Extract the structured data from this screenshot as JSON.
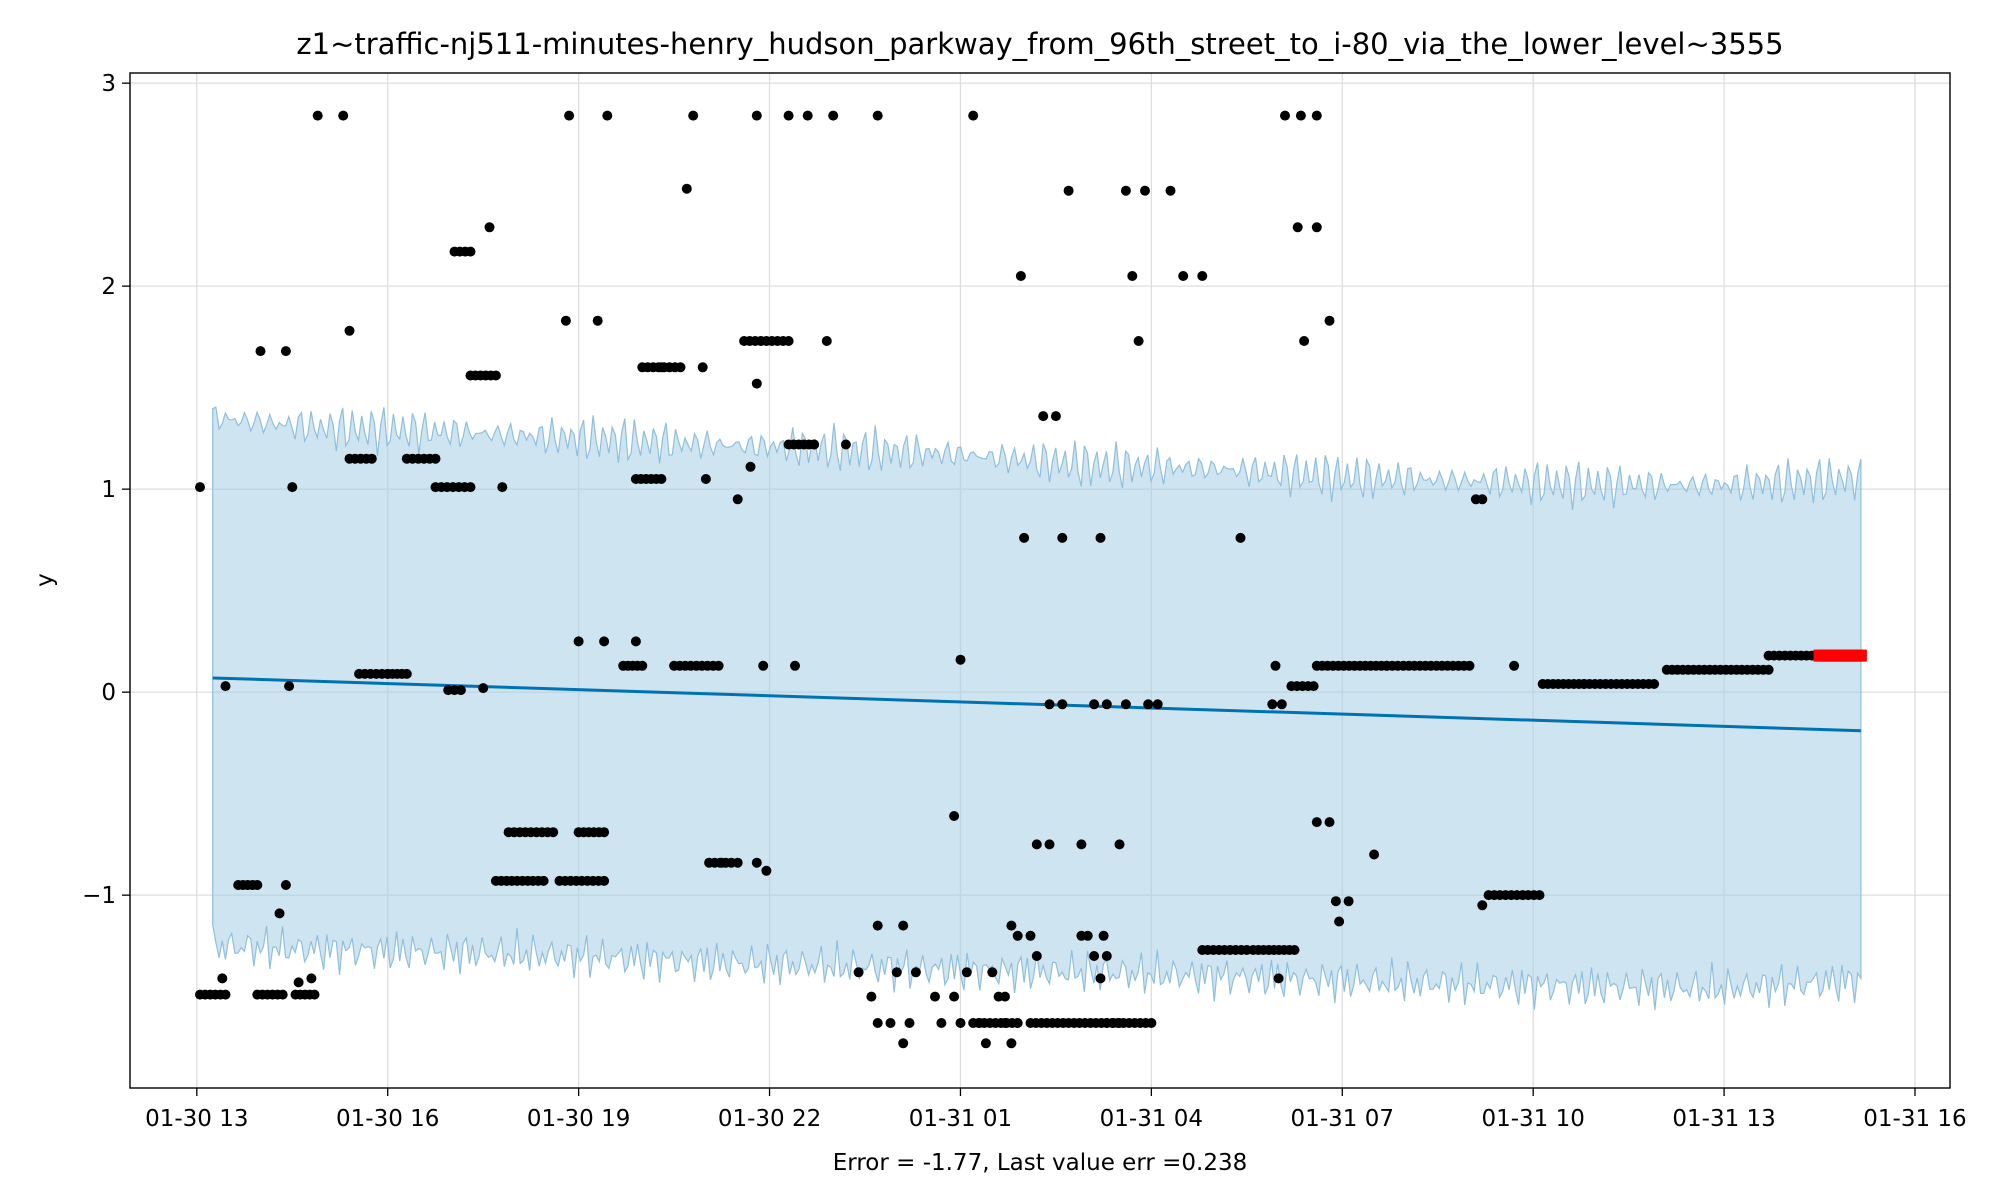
{
  "chart_data": {
    "type": "scatter",
    "title": "z1~traffic-nj511-minutes-henry_hudson_parkway_from_96th_street_to_i-80_via_the_lower_level~3555",
    "xlabel": "Error = -1.77, Last value err =0.238",
    "ylabel": "y",
    "x_tick_labels": [
      "01-30 13",
      "01-30 16",
      "01-30 19",
      "01-30 22",
      "01-31 01",
      "01-31 04",
      "01-31 07",
      "01-31 10",
      "01-31 13",
      "01-31 16"
    ],
    "x_tick_hours": [
      0,
      3,
      6,
      9,
      12,
      15,
      18,
      21,
      24,
      27
    ],
    "xlim_hours": [
      -1.05,
      27.55
    ],
    "y_ticks": [
      -1,
      0,
      1,
      2,
      3
    ],
    "y_tick_labels": [
      "−1",
      "0",
      "1",
      "2",
      "3"
    ],
    "ylim": [
      -1.95,
      3.05
    ],
    "grid": true,
    "colors": {
      "observed": "#000000",
      "trend": "#0072B2",
      "band_fill": "#a6cde3",
      "band_edge": "#8fbfdc",
      "forecast": "#ff0000",
      "grid": "#dddddd"
    },
    "series": [
      {
        "kind": "trend",
        "x_hours": [
          0.25,
          26.15
        ],
        "values": [
          0.07,
          -0.19
        ]
      },
      {
        "kind": "band",
        "x_hours": [
          0.25,
          2,
          4,
          6,
          8,
          10,
          12,
          14,
          16,
          18,
          20,
          22,
          24,
          26.15
        ],
        "upper": [
          1.35,
          1.3,
          1.28,
          1.25,
          1.22,
          1.2,
          1.17,
          1.12,
          1.1,
          1.06,
          1.04,
          1.02,
          1.02,
          1.05
        ],
        "lower": [
          -1.25,
          -1.27,
          -1.28,
          -1.3,
          -1.33,
          -1.35,
          -1.37,
          -1.38,
          -1.4,
          -1.42,
          -1.44,
          -1.45,
          -1.46,
          -1.42
        ]
      },
      {
        "kind": "observed",
        "segments": [
          {
            "x0": 0.05,
            "x1": 0.45,
            "y": -1.49
          },
          {
            "x0": 0.65,
            "x1": 0.95,
            "y": -0.95
          },
          {
            "x0": 0.95,
            "x1": 1.35,
            "y": -1.49
          },
          {
            "x0": 1.55,
            "x1": 1.85,
            "y": -1.49
          },
          {
            "x0": 2.4,
            "x1": 2.75,
            "y": 1.15
          },
          {
            "x0": 2.55,
            "x1": 3.0,
            "y": 0.09
          },
          {
            "x0": 3.0,
            "x1": 3.3,
            "y": 0.09
          },
          {
            "x0": 3.3,
            "x1": 3.75,
            "y": 1.15
          },
          {
            "x0": 3.75,
            "x1": 4.3,
            "y": 1.01
          },
          {
            "x0": 3.95,
            "x1": 4.15,
            "y": 0.01
          },
          {
            "x0": 4.05,
            "x1": 4.3,
            "y": 2.17
          },
          {
            "x0": 4.3,
            "x1": 4.7,
            "y": 1.56
          },
          {
            "x0": 4.7,
            "x1": 5.45,
            "y": -0.93
          },
          {
            "x0": 4.9,
            "x1": 5.6,
            "y": -0.69
          },
          {
            "x0": 5.7,
            "x1": 6.4,
            "y": -0.93
          },
          {
            "x0": 6.0,
            "x1": 6.4,
            "y": -0.69
          },
          {
            "x0": 6.7,
            "x1": 7.0,
            "y": 0.13
          },
          {
            "x0": 7.0,
            "x1": 7.6,
            "y": 1.6
          },
          {
            "x0": 7.5,
            "x1": 8.2,
            "y": 0.13
          },
          {
            "x0": 6.9,
            "x1": 7.3,
            "y": 1.05
          },
          {
            "x0": 8.05,
            "x1": 8.4,
            "y": -0.84
          },
          {
            "x0": 8.6,
            "x1": 9.3,
            "y": 1.73
          },
          {
            "x0": 9.3,
            "x1": 9.7,
            "y": 1.22
          },
          {
            "x0": 12.2,
            "x1": 12.9,
            "y": -1.63
          },
          {
            "x0": 13.1,
            "x1": 14.3,
            "y": -1.63
          },
          {
            "x0": 14.3,
            "x1": 15.0,
            "y": -1.63
          },
          {
            "x0": 15.8,
            "x1": 16.5,
            "y": -1.27
          },
          {
            "x0": 16.6,
            "x1": 17.25,
            "y": -1.27
          },
          {
            "x0": 17.2,
            "x1": 17.55,
            "y": 0.03
          },
          {
            "x0": 17.6,
            "x1": 18.7,
            "y": 0.13
          },
          {
            "x0": 18.7,
            "x1": 20.0,
            "y": 0.13
          },
          {
            "x0": 20.3,
            "x1": 21.1,
            "y": -1.0
          },
          {
            "x0": 21.15,
            "x1": 21.8,
            "y": 0.04
          },
          {
            "x0": 21.8,
            "x1": 22.9,
            "y": 0.04
          },
          {
            "x0": 23.1,
            "x1": 24.7,
            "y": 0.11
          },
          {
            "x0": 24.7,
            "x1": 25.55,
            "y": 0.18
          }
        ],
        "points": [
          [
            0.05,
            1.01
          ],
          [
            0.45,
            0.03
          ],
          [
            0.4,
            -1.41
          ],
          [
            1.0,
            1.68
          ],
          [
            1.3,
            -1.09
          ],
          [
            1.4,
            1.68
          ],
          [
            1.4,
            -0.95
          ],
          [
            1.45,
            0.03
          ],
          [
            1.5,
            1.01
          ],
          [
            1.6,
            -1.43
          ],
          [
            1.8,
            -1.41
          ],
          [
            1.9,
            2.84
          ],
          [
            2.3,
            2.84
          ],
          [
            2.4,
            1.78
          ],
          [
            4.5,
            0.02
          ],
          [
            4.6,
            2.29
          ],
          [
            4.8,
            1.01
          ],
          [
            5.8,
            1.83
          ],
          [
            5.85,
            2.84
          ],
          [
            6.0,
            0.25
          ],
          [
            6.4,
            0.25
          ],
          [
            6.3,
            1.83
          ],
          [
            6.45,
            2.84
          ],
          [
            6.9,
            0.25
          ],
          [
            7.3,
            1.6
          ],
          [
            7.7,
            2.48
          ],
          [
            7.8,
            2.84
          ],
          [
            7.95,
            1.6
          ],
          [
            8.0,
            1.05
          ],
          [
            8.5,
            0.95
          ],
          [
            8.7,
            1.11
          ],
          [
            8.8,
            1.52
          ],
          [
            8.9,
            0.13
          ],
          [
            9.4,
            0.13
          ],
          [
            9.7,
            1.22
          ],
          [
            10.2,
            1.22
          ],
          [
            8.25,
            -0.84
          ],
          [
            8.5,
            -0.84
          ],
          [
            8.8,
            -0.84
          ],
          [
            8.95,
            -0.88
          ],
          [
            8.8,
            2.84
          ],
          [
            9.3,
            2.84
          ],
          [
            9.6,
            2.84
          ],
          [
            10.0,
            2.84
          ],
          [
            10.7,
            2.84
          ],
          [
            9.9,
            1.73
          ],
          [
            10.4,
            -1.38
          ],
          [
            10.6,
            -1.5
          ],
          [
            10.7,
            -1.63
          ],
          [
            10.7,
            -1.15
          ],
          [
            10.9,
            -1.63
          ],
          [
            11.0,
            -1.38
          ],
          [
            11.1,
            -1.15
          ],
          [
            11.1,
            -1.73
          ],
          [
            11.2,
            -1.63
          ],
          [
            11.3,
            -1.38
          ],
          [
            11.6,
            -1.5
          ],
          [
            11.7,
            -1.63
          ],
          [
            11.9,
            -1.5
          ],
          [
            12.0,
            -1.63
          ],
          [
            11.9,
            -0.61
          ],
          [
            12.1,
            -1.38
          ],
          [
            12.0,
            0.16
          ],
          [
            12.2,
            2.84
          ],
          [
            12.3,
            -1.63
          ],
          [
            12.4,
            -1.73
          ],
          [
            12.5,
            -1.38
          ],
          [
            12.6,
            -1.5
          ],
          [
            12.7,
            -1.5
          ],
          [
            12.7,
            -1.63
          ],
          [
            12.8,
            -1.73
          ],
          [
            12.8,
            -1.15
          ],
          [
            12.9,
            -1.2
          ],
          [
            12.95,
            2.05
          ],
          [
            13.0,
            0.76
          ],
          [
            13.1,
            -1.2
          ],
          [
            13.2,
            -1.3
          ],
          [
            13.2,
            -0.75
          ],
          [
            13.4,
            -0.75
          ],
          [
            13.3,
            1.36
          ],
          [
            13.4,
            -0.06
          ],
          [
            13.5,
            1.36
          ],
          [
            13.6,
            0.76
          ],
          [
            13.6,
            -0.06
          ],
          [
            13.7,
            2.47
          ],
          [
            13.9,
            -0.75
          ],
          [
            13.9,
            -1.2
          ],
          [
            14.0,
            -1.2
          ],
          [
            14.1,
            -1.3
          ],
          [
            14.2,
            -1.41
          ],
          [
            14.3,
            -1.3
          ],
          [
            14.25,
            -1.2
          ],
          [
            14.4,
            -1.63
          ],
          [
            14.5,
            -0.75
          ],
          [
            14.5,
            -1.63
          ],
          [
            14.2,
            0.76
          ],
          [
            14.1,
            -0.06
          ],
          [
            14.3,
            -0.06
          ],
          [
            14.6,
            -0.06
          ],
          [
            14.6,
            2.47
          ],
          [
            14.7,
            2.05
          ],
          [
            14.8,
            1.73
          ],
          [
            14.9,
            2.47
          ],
          [
            14.95,
            -0.06
          ],
          [
            15.1,
            -0.06
          ],
          [
            15.3,
            2.47
          ],
          [
            15.5,
            2.05
          ],
          [
            15.8,
            2.05
          ],
          [
            16.4,
            0.76
          ],
          [
            17.0,
            -1.41
          ],
          [
            17.05,
            -0.06
          ],
          [
            17.1,
            2.84
          ],
          [
            17.35,
            2.84
          ],
          [
            17.6,
            2.84
          ],
          [
            17.3,
            2.29
          ],
          [
            17.4,
            1.73
          ],
          [
            17.6,
            2.29
          ],
          [
            17.8,
            1.83
          ],
          [
            17.6,
            -0.64
          ],
          [
            17.8,
            -0.64
          ],
          [
            17.9,
            -1.03
          ],
          [
            17.95,
            -1.13
          ],
          [
            18.1,
            -1.03
          ],
          [
            18.5,
            -0.8
          ],
          [
            20.1,
            0.95
          ],
          [
            20.2,
            0.95
          ],
          [
            20.2,
            -1.05
          ],
          [
            20.7,
            0.13
          ],
          [
            16.95,
            0.13
          ],
          [
            16.9,
            -0.06
          ]
        ]
      },
      {
        "kind": "forecast",
        "x_hours": [
          25.5,
          26.15
        ],
        "y": 0.18
      }
    ]
  }
}
